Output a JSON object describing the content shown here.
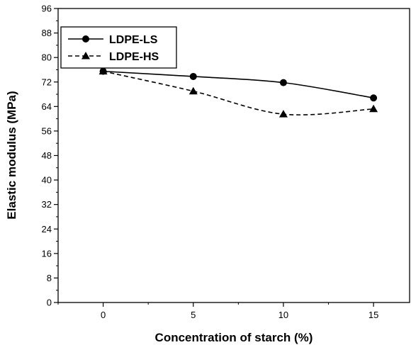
{
  "chart_data": {
    "type": "line",
    "title": "",
    "xlabel": "Concentration of starch (%)",
    "ylabel": "Elastic modulus (MPa)",
    "x": [
      0,
      5,
      10,
      15
    ],
    "x_tick_labels": [
      "0",
      "5",
      "10",
      "15"
    ],
    "xlim": [
      -2.5,
      17
    ],
    "ylim": [
      0,
      96
    ],
    "y_ticks": [
      0,
      8,
      16,
      24,
      32,
      40,
      48,
      56,
      64,
      72,
      80,
      88,
      96
    ],
    "y_tick_labels": [
      "0",
      "8",
      "16",
      "24",
      "32",
      "40",
      "48",
      "56",
      "64",
      "72",
      "80",
      "88",
      "96"
    ],
    "grid": false,
    "legend_position": "top-left",
    "series": [
      {
        "name": "LDPE-LS",
        "values": [
          75.5,
          73.8,
          71.8,
          66.8
        ],
        "marker": "circle",
        "line_style": "solid",
        "color": "#000000"
      },
      {
        "name": "LDPE-HS",
        "values": [
          75.5,
          69.0,
          61.5,
          63.2
        ],
        "marker": "triangle",
        "line_style": "dashed",
        "color": "#000000"
      }
    ]
  }
}
